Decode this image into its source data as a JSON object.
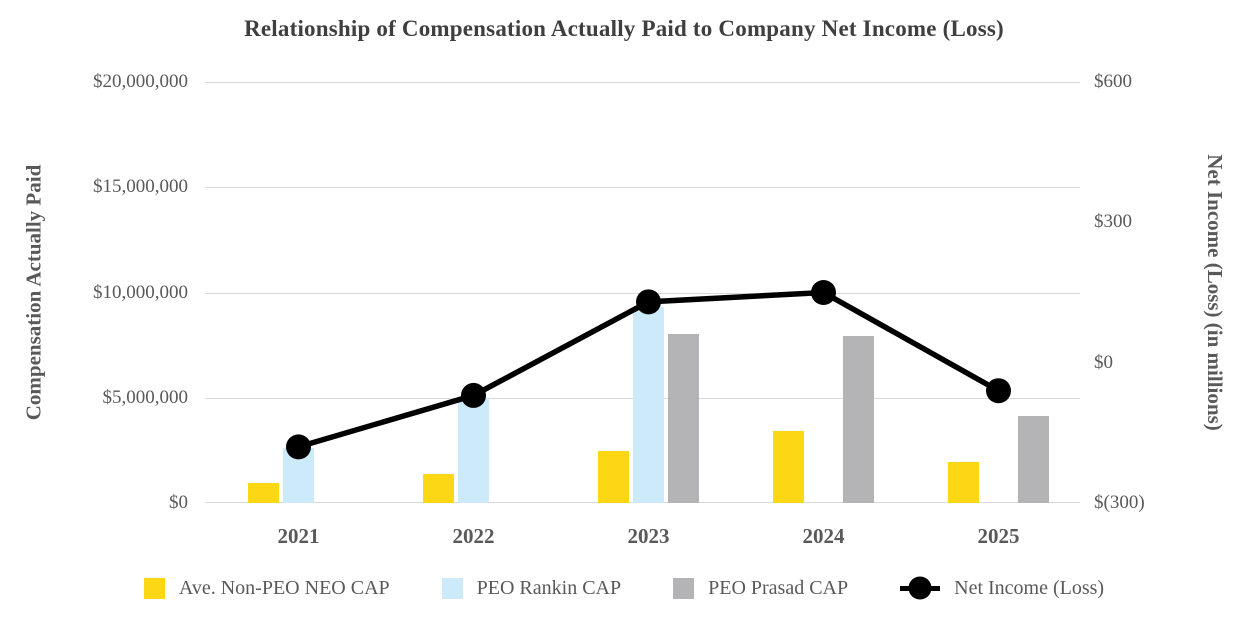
{
  "title": "Relationship of Compensation Actually Paid to Company Net Income (Loss)",
  "left_axis": {
    "title": "Compensation Actually Paid",
    "ticks": [
      "$20,000,000",
      "$15,000,000",
      "$10,000,000",
      "$5,000,000",
      "$0"
    ]
  },
  "right_axis": {
    "title": "Net Income (Loss) (in millions)",
    "ticks": [
      "$600",
      "$300",
      "$0",
      "$(300)"
    ]
  },
  "colors": {
    "ave_non_peo_neo_cap": "#FBD714",
    "peo_rankin_cap": "#CDEAFA",
    "peo_prasad_cap": "#B4B4B6",
    "net_income_line": "#000000",
    "gridline": "#D9D9D9",
    "text_gray": "#595959",
    "title_gray": "#3F3F3F"
  },
  "legend": [
    {
      "label": "Ave. Non-PEO NEO CAP",
      "marker": "swatch",
      "color": "#FBD714"
    },
    {
      "label": "PEO Rankin CAP",
      "marker": "swatch",
      "color": "#CDEAFA"
    },
    {
      "label": "PEO Prasad CAP",
      "marker": "swatch",
      "color": "#B4B4B6"
    },
    {
      "label": "Net Income (Loss)",
      "marker": "line-dot",
      "color": "#000000"
    }
  ],
  "chart_data": {
    "type": "bar+line",
    "title": "Relationship of Compensation Actually Paid to Company Net Income (Loss)",
    "categories": [
      "2021",
      "2022",
      "2023",
      "2024",
      "2025"
    ],
    "series": [
      {
        "name": "Ave. Non-PEO NEO CAP",
        "type": "bar",
        "axis": "left",
        "color": "#FBD714",
        "values": [
          950000,
          1400000,
          2450000,
          3400000,
          1950000
        ]
      },
      {
        "name": "PEO Rankin CAP",
        "type": "bar",
        "axis": "left",
        "color": "#CDEAFA",
        "values": [
          2600000,
          5000000,
          9300000,
          null,
          null
        ]
      },
      {
        "name": "PEO Prasad CAP",
        "type": "bar",
        "axis": "left",
        "color": "#B4B4B6",
        "values": [
          null,
          null,
          8050000,
          7950000,
          4150000
        ]
      },
      {
        "name": "Net Income (Loss)",
        "type": "line",
        "axis": "right",
        "color": "#000000",
        "values": [
          -180,
          -70,
          130,
          150,
          -60
        ]
      }
    ],
    "left_ylabel": "Compensation Actually Paid",
    "right_ylabel": "Net Income (Loss) (in millions)",
    "left_ylim": [
      0,
      20000000
    ],
    "right_ylim": [
      -300,
      600
    ],
    "grid": true,
    "legend_position": "bottom"
  }
}
